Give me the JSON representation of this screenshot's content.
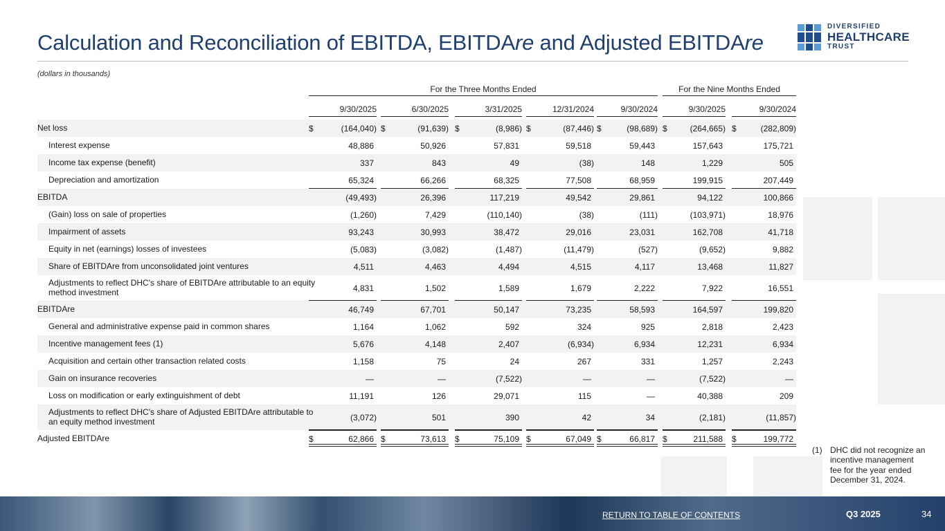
{
  "header": {
    "title_main": "Calculation and Reconciliation of EBITDA, EBITDA",
    "title_re1": "re",
    "title_mid": " and Adjusted EBITDA",
    "title_re2": "re",
    "subtitle": "(dollars in thousands)"
  },
  "logo": {
    "line1": "DIVERSIFIED",
    "line2": "HEALTHCARE",
    "line3": "TRUST"
  },
  "table": {
    "group_headers": [
      "For the Three Months Ended",
      "For the Nine Months Ended"
    ],
    "columns": [
      "9/30/2025",
      "6/30/2025",
      "3/31/2025",
      "12/31/2024",
      "9/30/2024",
      "9/30/2025",
      "9/30/2024"
    ],
    "rows": [
      {
        "label": "Net loss",
        "indent": false,
        "dollar": true,
        "values": [
          "(164,040)",
          "(91,639)",
          "(8,986)",
          "(87,446)",
          "(98,689)",
          "(264,665)",
          "(282,809)"
        ]
      },
      {
        "label": "Interest expense",
        "indent": true,
        "values": [
          "48,886",
          "50,926",
          "57,831",
          "59,518",
          "59,443",
          "157,643",
          "175,721"
        ]
      },
      {
        "label": "Income tax expense (benefit)",
        "indent": true,
        "values": [
          "337",
          "843",
          "49",
          "(38)",
          "148",
          "1,229",
          "505"
        ]
      },
      {
        "label": "Depreciation and amortization",
        "indent": true,
        "underline": true,
        "values": [
          "65,324",
          "66,266",
          "68,325",
          "77,508",
          "68,959",
          "199,915",
          "207,449"
        ]
      },
      {
        "label": "EBITDA",
        "indent": false,
        "values": [
          "(49,493)",
          "26,396",
          "117,219",
          "49,542",
          "29,861",
          "94,122",
          "100,866"
        ]
      },
      {
        "label": "(Gain) loss on sale of properties",
        "indent": true,
        "values": [
          "(1,260)",
          "7,429",
          "(110,140)",
          "(38)",
          "(111)",
          "(103,971)",
          "18,976"
        ]
      },
      {
        "label": "Impairment of assets",
        "indent": true,
        "values": [
          "93,243",
          "30,993",
          "38,472",
          "29,016",
          "23,031",
          "162,708",
          "41,718"
        ]
      },
      {
        "label": "Equity in net (earnings) losses of investees",
        "indent": true,
        "values": [
          "(5,083)",
          "(3,082)",
          "(1,487)",
          "(11,479)",
          "(527)",
          "(9,652)",
          "9,882"
        ]
      },
      {
        "label": "Share of EBITDAre from unconsolidated joint ventures",
        "indent": true,
        "values": [
          "4,511",
          "4,463",
          "4,494",
          "4,515",
          "4,117",
          "13,468",
          "11,827"
        ]
      },
      {
        "label": "Adjustments to reflect DHC's share of EBITDAre attributable to an equity method investment",
        "indent": true,
        "tall": true,
        "underline": true,
        "values": [
          "4,831",
          "1,502",
          "1,589",
          "1,679",
          "2,222",
          "7,922",
          "16,551"
        ]
      },
      {
        "label": "EBITDAre",
        "indent": false,
        "values": [
          "46,749",
          "67,701",
          "50,147",
          "73,235",
          "58,593",
          "164,597",
          "199,820"
        ]
      },
      {
        "label": "General and administrative expense paid in common shares",
        "indent": true,
        "values": [
          "1,164",
          "1,062",
          "592",
          "324",
          "925",
          "2,818",
          "2,423"
        ]
      },
      {
        "label": "Incentive management fees (1)",
        "indent": true,
        "values": [
          "5,676",
          "4,148",
          "2,407",
          "(6,934)",
          "6,934",
          "12,231",
          "6,934"
        ]
      },
      {
        "label": "Acquisition and certain other transaction related costs",
        "indent": true,
        "values": [
          "1,158",
          "75",
          "24",
          "267",
          "331",
          "1,257",
          "2,243"
        ]
      },
      {
        "label": "Gain on insurance recoveries",
        "indent": true,
        "values": [
          "—",
          "—",
          "(7,522)",
          "—",
          "—",
          "(7,522)",
          "—"
        ]
      },
      {
        "label": "Loss on modification or early extinguishment of debt",
        "indent": true,
        "values": [
          "11,191",
          "126",
          "29,071",
          "115",
          "—",
          "40,388",
          "209"
        ]
      },
      {
        "label": "Adjustments to reflect DHC's share of Adjusted EBITDAre attributable to an equity method investment",
        "indent": true,
        "tall": true,
        "underline": true,
        "values": [
          "(3,072)",
          "501",
          "390",
          "42",
          "34",
          "(2,181)",
          "(11,857)"
        ]
      },
      {
        "label": "Adjusted EBITDAre",
        "indent": false,
        "dollar": true,
        "double": true,
        "values": [
          "62,866",
          "73,613",
          "75,109",
          "67,049",
          "66,817",
          "211,588",
          "199,772"
        ]
      }
    ],
    "dollar_sign": "$"
  },
  "footnote": {
    "number": "(1)",
    "text": "DHC did not recognize an incentive management fee for the year ended December 31, 2024."
  },
  "footer": {
    "return_link": "RETURN TO TABLE OF CONTENTS",
    "quarter": "Q3 2025",
    "page": "34"
  }
}
